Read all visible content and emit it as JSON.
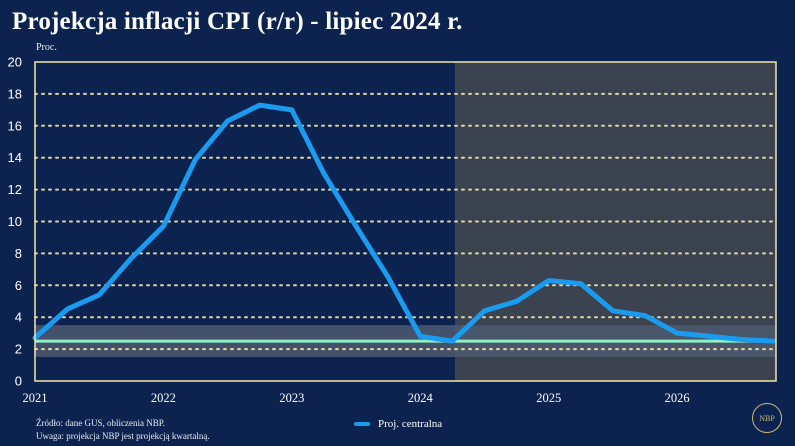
{
  "header": {
    "title": "Projekcja inflacji CPI (r/r) - lipiec 2024 r.",
    "unit_label": "Proc."
  },
  "footer": {
    "source": "Źródło: dane GUS, obliczenia NBP.",
    "note": "Uwaga: projekcja NBP jest projekcją kwartalną."
  },
  "logo": {
    "text": "NBP"
  },
  "colors": {
    "background": "#0c2350",
    "series": "#1a9bf0",
    "target_line": "#8ff0c8",
    "tolerance_band": "#4e5a6e",
    "projection_shade": "#3b4250",
    "frame": "#f3e7a9",
    "gridline": "#f3e7a9"
  },
  "chart_data": {
    "type": "line",
    "x_axis": {
      "ticks": [
        "2021",
        "2022",
        "2023",
        "2024",
        "2025",
        "2026"
      ],
      "range": [
        2021.0,
        2026.77
      ]
    },
    "y_axis": {
      "ticks": [
        "0",
        "2",
        "4",
        "6",
        "8",
        "10",
        "12",
        "14",
        "16",
        "18",
        "20"
      ],
      "range": [
        0,
        20
      ]
    },
    "grid": {
      "horizontal": true,
      "style": "dotted"
    },
    "projection_start": 2024.27,
    "inflation_target": 2.5,
    "tolerance_band": [
      1.5,
      3.5
    ],
    "legend": {
      "position": "bottom-center"
    },
    "series": [
      {
        "name": "Proj. centralna",
        "points": [
          [
            2021.0,
            2.7
          ],
          [
            2021.25,
            4.5
          ],
          [
            2021.5,
            5.4
          ],
          [
            2021.75,
            7.7
          ],
          [
            2022.0,
            9.7
          ],
          [
            2022.25,
            13.9
          ],
          [
            2022.5,
            16.3
          ],
          [
            2022.75,
            17.3
          ],
          [
            2023.0,
            17.0
          ],
          [
            2023.25,
            13.0
          ],
          [
            2023.5,
            9.7
          ],
          [
            2023.75,
            6.5
          ],
          [
            2024.0,
            2.8
          ],
          [
            2024.25,
            2.5
          ],
          [
            2024.5,
            4.4
          ],
          [
            2024.75,
            5.0
          ],
          [
            2025.0,
            6.3
          ],
          [
            2025.25,
            6.1
          ],
          [
            2025.5,
            4.4
          ],
          [
            2025.75,
            4.1
          ],
          [
            2026.0,
            3.0
          ],
          [
            2026.25,
            2.8
          ],
          [
            2026.5,
            2.6
          ],
          [
            2026.75,
            2.5
          ]
        ]
      }
    ]
  }
}
